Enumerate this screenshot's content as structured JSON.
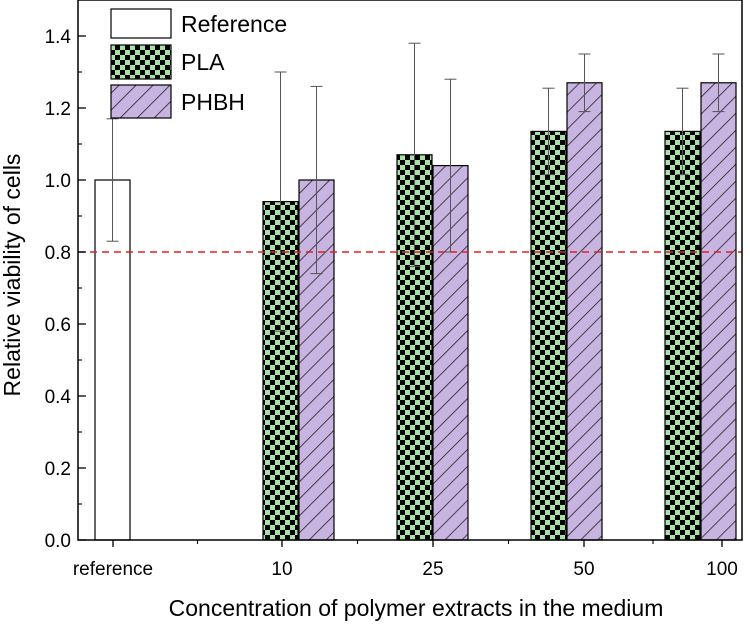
{
  "chart_data": {
    "type": "bar",
    "xlabel": "Concentration of polymer extracts in the medium",
    "ylabel": "Relative viability of cells",
    "ylim": [
      0,
      1.5
    ],
    "yticks": [
      0.0,
      0.2,
      0.4,
      0.6,
      0.8,
      1.0,
      1.2,
      1.4
    ],
    "ytick_labels": [
      "0.0",
      "0.2",
      "0.4",
      "0.6",
      "0.8",
      "1.0",
      "1.2",
      "1.4"
    ],
    "categories": [
      "reference",
      "10",
      "25",
      "50",
      "100"
    ],
    "series": [
      {
        "name": "Reference",
        "pattern": "none",
        "fill": "#ffffff",
        "values": [
          1.0,
          null,
          null,
          null,
          null
        ],
        "errors": [
          0.17,
          null,
          null,
          null,
          null
        ]
      },
      {
        "name": "PLA",
        "pattern": "checker",
        "fill": "#a8e0a8",
        "values": [
          null,
          0.94,
          1.07,
          1.135,
          1.135
        ],
        "errors": [
          null,
          0.36,
          0.31,
          0.12,
          0.12
        ]
      },
      {
        "name": "PHBH",
        "pattern": "hatch",
        "fill": "#c8b4e0",
        "values": [
          null,
          1.0,
          1.04,
          1.27,
          1.27
        ],
        "errors": [
          null,
          0.26,
          0.24,
          0.08,
          0.08
        ]
      }
    ],
    "reference_line": {
      "y": 0.8,
      "color": "#e02020",
      "style": "dashed"
    },
    "legend_position": "top-left",
    "grid": false
  }
}
